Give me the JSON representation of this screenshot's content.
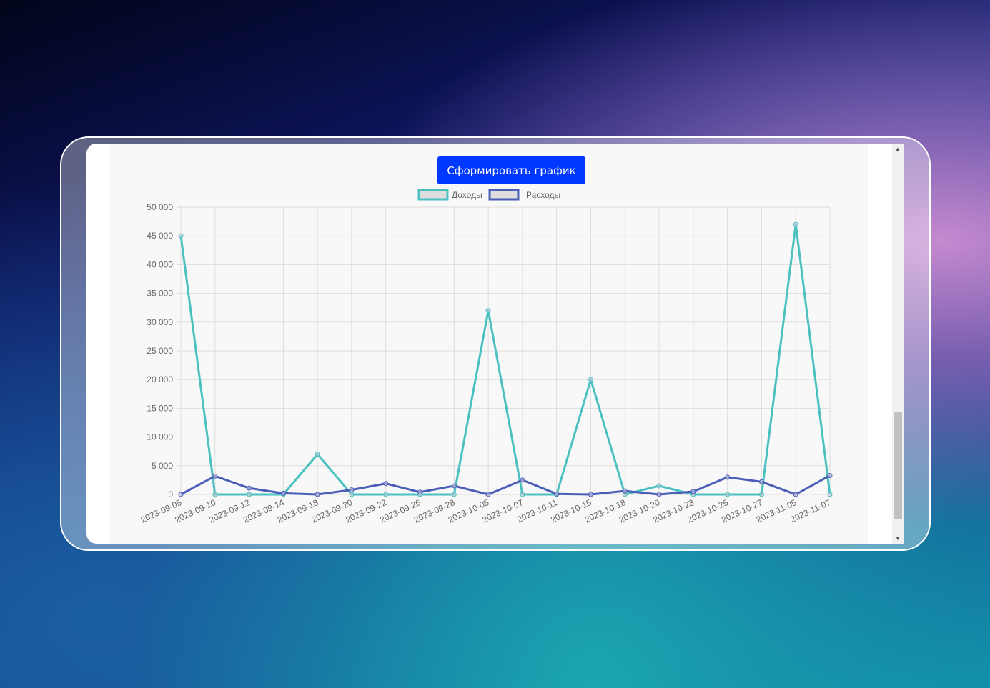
{
  "button": {
    "label": "Сформировать график"
  },
  "chart_data": {
    "type": "line",
    "categories": [
      "2023-09-05",
      "2023-09-10",
      "2023-09-12",
      "2023-09-14",
      "2023-09-18",
      "2023-09-20",
      "2023-09-22",
      "2023-09-26",
      "2023-09-28",
      "2023-10-05",
      "2023-10-07",
      "2023-10-11",
      "2023-10-15",
      "2023-10-18",
      "2023-10-20",
      "2023-10-23",
      "2023-10-25",
      "2023-10-27",
      "2023-11-05",
      "2023-11-07"
    ],
    "series": [
      {
        "name": "Доходы",
        "color": "#4bc0c0",
        "values": [
          45000,
          0,
          0,
          0,
          7000,
          0,
          0,
          0,
          0,
          32000,
          0,
          0,
          20000,
          0,
          1500,
          0,
          0,
          0,
          47000,
          0
        ]
      },
      {
        "name": "Расходы",
        "color": "#4a5eb8",
        "values": [
          0,
          3200,
          1100,
          200,
          0,
          800,
          1900,
          400,
          1500,
          0,
          2500,
          100,
          0,
          600,
          0,
          500,
          3000,
          2200,
          0,
          3300
        ]
      }
    ],
    "yticks": [
      "0",
      "5 000",
      "10 000",
      "15 000",
      "20 000",
      "25 000",
      "30 000",
      "35 000",
      "40 000",
      "45 000",
      "50 000"
    ],
    "ylim": [
      0,
      50000
    ],
    "grid": true,
    "legend": "top"
  }
}
